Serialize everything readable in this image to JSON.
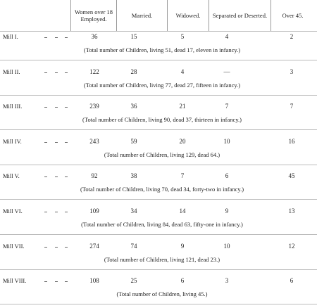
{
  "table": {
    "columns": [
      "Women over 18 Employed.",
      "Married.",
      "Widowed.",
      "Separated or Deserted.",
      "Over 45."
    ],
    "rows": [
      {
        "label": "Mill I.",
        "cells": [
          36,
          15,
          5,
          4,
          2
        ],
        "note": "(Total number of Children, living 51, dead 17, eleven in infancy.)"
      },
      {
        "label": "Mill II.",
        "cells": [
          122,
          28,
          4,
          "—",
          3
        ],
        "note": "(Total number of Children, living 77, dead 27, fifteen in infancy.)"
      },
      {
        "label": "Mill III.",
        "cells": [
          239,
          36,
          21,
          7,
          7
        ],
        "note": "(Total number of Children, living 90, dead 37, thirteen in infancy.)"
      },
      {
        "label": "Mill IV.",
        "cells": [
          243,
          59,
          20,
          10,
          16
        ],
        "note": "(Total number of Children, living 129, dead 64.)"
      },
      {
        "label": "Mill V.",
        "cells": [
          92,
          38,
          7,
          6,
          45
        ],
        "note": "(Total number of Children, living 70, dead 34, forty-two in infancy.)"
      },
      {
        "label": "Mill VI.",
        "cells": [
          109,
          34,
          14,
          9,
          13
        ],
        "note": "(Total number of Children, living 84, dead 63, fifty-one in infancy.)"
      },
      {
        "label": "Mill VII.",
        "cells": [
          274,
          74,
          9,
          10,
          12
        ],
        "note": "(Total number of Children, living 121, dead 23.)"
      },
      {
        "label": "Mill VIII.",
        "cells": [
          108,
          25,
          6,
          3,
          6
        ],
        "note": "(Total number of Children, living 45.)"
      }
    ]
  }
}
